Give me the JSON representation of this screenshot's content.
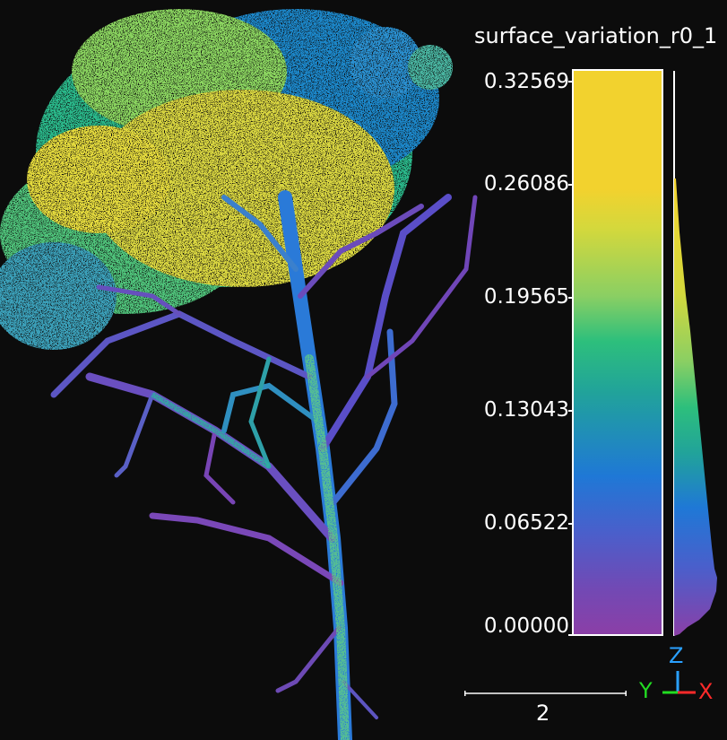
{
  "scalar_field": {
    "name": "surface_variation_r0_1",
    "ticks": [
      "0.32569",
      "0.26086",
      "0.19565",
      "0.13043",
      "0.06522",
      "0.00000"
    ]
  },
  "scale": {
    "label": "2"
  },
  "axes": {
    "z": "Z",
    "y": "Y",
    "x": "X"
  },
  "colors": {
    "background": "#0c0c0c",
    "colormap": [
      "#f2d22e",
      "#d7d93a",
      "#7ccd6b",
      "#28c07f",
      "#1f9aa0",
      "#1f70d6",
      "#4a5ec9",
      "#6a4fb5",
      "#8e3fa5"
    ],
    "axis_x": "#ff2a2a",
    "axis_y": "#22dd22",
    "axis_z": "#2aa0ff"
  }
}
